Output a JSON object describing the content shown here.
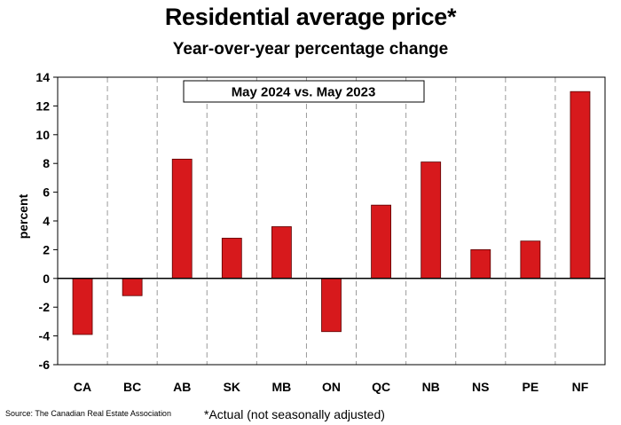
{
  "chart_data": {
    "type": "bar",
    "title": "Residential average price*",
    "subtitle": "Year-over-year percentage change",
    "annotation": "May 2024 vs. May 2023",
    "xlabel": "",
    "ylabel": "percent",
    "ylim": [
      -6,
      14
    ],
    "yticks": [
      -6,
      -4,
      -2,
      0,
      2,
      4,
      6,
      8,
      10,
      12,
      14
    ],
    "categories": [
      "CA",
      "BC",
      "AB",
      "SK",
      "MB",
      "ON",
      "QC",
      "NB",
      "NS",
      "PE",
      "NF"
    ],
    "values": [
      -3.9,
      -1.2,
      8.3,
      2.8,
      3.6,
      -3.7,
      5.1,
      8.1,
      2.0,
      2.6,
      13.0
    ],
    "bar_color": "#d7191c",
    "grid": "vertical dashed",
    "footnote": "*Actual (not seasonally adjusted)",
    "source": "Source: The Canadian Real Estate Association"
  }
}
